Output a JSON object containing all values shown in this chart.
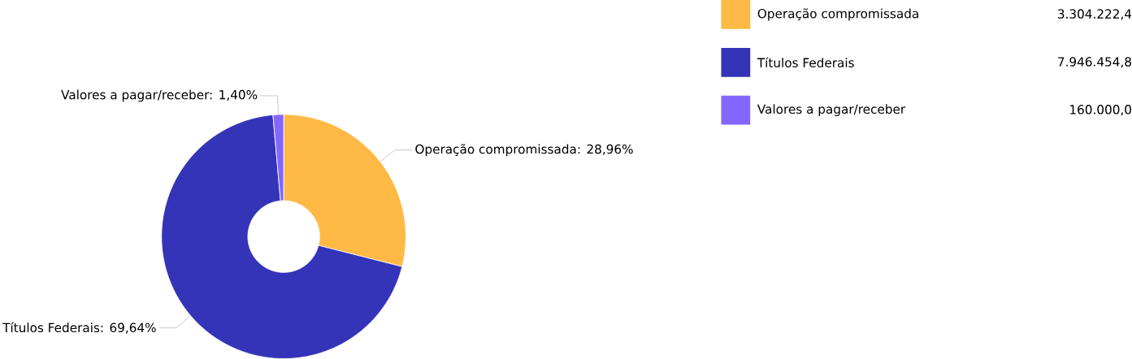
{
  "chart_data": {
    "type": "donut",
    "categories": [
      "Operação compromissada",
      "Títulos Federais",
      "Valores a pagar/receber"
    ],
    "values": [
      28.96,
      69.64,
      1.4
    ],
    "value_labels": [
      "Operação compromissada: 28,96%",
      "Títulos Federais: 69,64%",
      "Valores a pagar/receber: 1,40%"
    ],
    "colors": [
      "#ffb944",
      "#3434b8",
      "#8466ff"
    ],
    "legend": "top right",
    "annotations": [
      "3.304.222,4",
      "7.946.454,8",
      "160.000,0"
    ]
  }
}
